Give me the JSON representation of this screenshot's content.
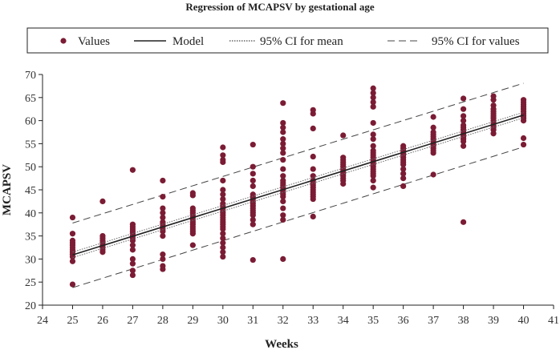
{
  "chart_data": {
    "type": "scatter",
    "title": "Regression of MCAPSV by gestational age",
    "xlabel": "Weeks",
    "ylabel": "MCAPSV",
    "xlim": [
      24,
      41
    ],
    "ylim": [
      20,
      70
    ],
    "x_ticks": [
      "24",
      "25",
      "26",
      "27",
      "28",
      "29",
      "30",
      "31",
      "32",
      "33",
      "34",
      "35",
      "36",
      "37",
      "38",
      "39",
      "40",
      "41"
    ],
    "y_ticks": [
      "20",
      "25",
      "30",
      "35",
      "40",
      "45",
      "50",
      "55",
      "60",
      "65",
      "70"
    ],
    "grid": "none",
    "legend_position": "top",
    "legend": [
      {
        "key": "values",
        "label": "Values"
      },
      {
        "key": "model",
        "label": "Model"
      },
      {
        "key": "ci_mean",
        "label": "95% CI for mean"
      },
      {
        "key": "ci_values",
        "label": "95% CI for values"
      }
    ],
    "colors": {
      "points": "#7b1c34",
      "lines": "#222222"
    },
    "points": [
      {
        "x": 25,
        "y": [
          24.5,
          29.5,
          30.5,
          31,
          31.5,
          32,
          32.5,
          33,
          33.5,
          34,
          35.5,
          39
        ]
      },
      {
        "x": 26,
        "y": [
          31.5,
          32,
          32.5,
          33,
          33.5,
          34,
          34.5,
          35,
          42.5
        ]
      },
      {
        "x": 27,
        "y": [
          26.5,
          27.5,
          29,
          30,
          32,
          33,
          34,
          34.5,
          35,
          35.5,
          36,
          36.5,
          37,
          37.5,
          49.3
        ]
      },
      {
        "x": 28,
        "y": [
          27.8,
          28.5,
          30,
          31,
          35,
          36,
          36.5,
          37,
          37.5,
          38,
          39,
          40,
          41,
          43.5,
          47
        ]
      },
      {
        "x": 29,
        "y": [
          33,
          35.5,
          36,
          36.5,
          37,
          37.5,
          38,
          38.5,
          39,
          39.5,
          40,
          40.5,
          41,
          43.8,
          44.3
        ]
      },
      {
        "x": 30,
        "y": [
          30.5,
          31.5,
          32.5,
          33.5,
          34.5,
          35.5,
          36.5,
          37,
          37.5,
          38,
          38.5,
          39,
          39.5,
          40,
          40.5,
          41,
          41.5,
          42,
          43,
          44,
          45,
          47,
          51,
          51.5,
          52.5,
          54.2
        ]
      },
      {
        "x": 31,
        "y": [
          29.8,
          37.5,
          38.5,
          39.5,
          40,
          40.5,
          41,
          41.5,
          42,
          42.5,
          43,
          43.5,
          44,
          45.8,
          47,
          48.5,
          50,
          54.8
        ]
      },
      {
        "x": 32,
        "y": [
          30,
          38.5,
          39.5,
          41,
          42.5,
          43.5,
          44,
          44.5,
          45,
          45.5,
          46,
          46.5,
          47,
          48,
          49.5,
          51.5,
          53,
          54,
          55,
          56,
          57.5,
          58.5,
          59.5,
          63.8
        ]
      },
      {
        "x": 33,
        "y": [
          39.2,
          43,
          43.5,
          44,
          44.5,
          45,
          45.5,
          46,
          46.5,
          47,
          48,
          49.5,
          52.2,
          58.3,
          61.5,
          62.3
        ]
      },
      {
        "x": 34,
        "y": [
          46.3,
          47,
          47.5,
          48,
          48.5,
          49,
          49.5,
          50,
          50.5,
          51,
          51.5,
          52,
          56.8
        ]
      },
      {
        "x": 35,
        "y": [
          45.5,
          47,
          48,
          48.5,
          49,
          49.5,
          50,
          50.5,
          51,
          51.5,
          52,
          52.5,
          53,
          53.5,
          54.5,
          56,
          57,
          59.5,
          63,
          64,
          65,
          66,
          67
        ]
      },
      {
        "x": 36,
        "y": [
          45.8,
          47.5,
          48.5,
          49.5,
          50.5,
          51,
          51.5,
          52,
          52.5,
          53,
          53.5,
          54,
          54.5
        ]
      },
      {
        "x": 37,
        "y": [
          48.3,
          53,
          53.5,
          54,
          54.5,
          55,
          55.5,
          56,
          56.5,
          57,
          57.5,
          58.5,
          60.8
        ]
      },
      {
        "x": 38,
        "y": [
          38,
          54.5,
          55.5,
          56,
          56.5,
          57,
          57.5,
          58,
          58.5,
          59,
          60,
          61,
          62.5,
          64.8
        ]
      },
      {
        "x": 39,
        "y": [
          57.2,
          58,
          58.5,
          59,
          59.5,
          60,
          60.5,
          61,
          61.5,
          62,
          62.5,
          63.3,
          64.5,
          65.3
        ]
      },
      {
        "x": 40,
        "y": [
          54.8,
          56.2,
          60,
          60.5,
          61,
          61.5,
          62,
          62.5,
          63,
          63.5,
          64,
          64.5
        ]
      }
    ],
    "model": {
      "x": [
        25,
        40
      ],
      "y": [
        30.9,
        61.2
      ]
    },
    "ci_mean": {
      "lower": {
        "x": [
          25,
          40
        ],
        "y": [
          30.3,
          60.6
        ]
      },
      "upper": {
        "x": [
          25,
          40
        ],
        "y": [
          31.5,
          61.8
        ]
      }
    },
    "ci_values": {
      "lower": {
        "x": [
          25,
          40
        ],
        "y": [
          23.8,
          54.3
        ]
      },
      "upper": {
        "x": [
          25,
          40
        ],
        "y": [
          37.8,
          68.1
        ]
      }
    }
  }
}
